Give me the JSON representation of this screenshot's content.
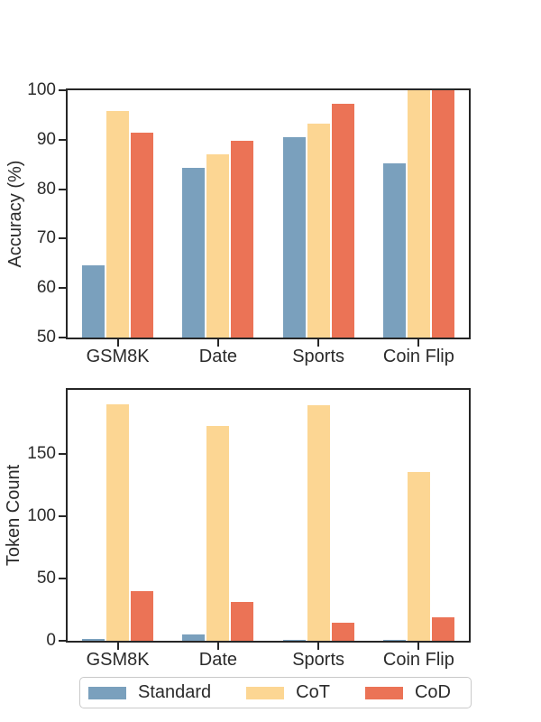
{
  "chart_data": [
    {
      "type": "bar",
      "categories": [
        "GSM8K",
        "Date",
        "Sports",
        "Coin Flip"
      ],
      "series": [
        {
          "name": "Standard",
          "color": "#7aa0bd",
          "values": [
            64.6,
            84.3,
            90.6,
            85.2
          ]
        },
        {
          "name": "CoT",
          "color": "#fcd693",
          "values": [
            95.8,
            87.0,
            93.2,
            100.0
          ]
        },
        {
          "name": "CoD",
          "color": "#eb7356",
          "values": [
            91.4,
            89.7,
            97.3,
            100.0
          ]
        }
      ],
      "title": "",
      "xlabel": "",
      "ylabel": "Accuracy (%)",
      "ylim": [
        50,
        100
      ],
      "yticks": [
        50,
        60,
        70,
        80,
        90,
        100
      ],
      "grid": false,
      "legend_position": "none"
    },
    {
      "type": "bar",
      "categories": [
        "GSM8K",
        "Date",
        "Sports",
        "Coin Flip"
      ],
      "series": [
        {
          "name": "Standard",
          "color": "#7aa0bd",
          "values": [
            1.1,
            5.2,
            1.0,
            1.0
          ]
        },
        {
          "name": "CoT",
          "color": "#fcd693",
          "values": [
            190.0,
            172.5,
            189.4,
            135.3
          ]
        },
        {
          "name": "CoD",
          "color": "#eb7356",
          "values": [
            39.8,
            31.3,
            14.3,
            18.9
          ]
        }
      ],
      "title": "",
      "xlabel": "",
      "ylabel": "Token Count",
      "ylim": [
        0,
        201.5
      ],
      "yticks": [
        0,
        50,
        100,
        150
      ],
      "grid": false,
      "legend_position": "bottom"
    }
  ],
  "legend": {
    "items": [
      {
        "label": "Standard",
        "color": "#7aa0bd"
      },
      {
        "label": "CoT",
        "color": "#fcd693"
      },
      {
        "label": "CoD",
        "color": "#eb7356"
      }
    ]
  }
}
